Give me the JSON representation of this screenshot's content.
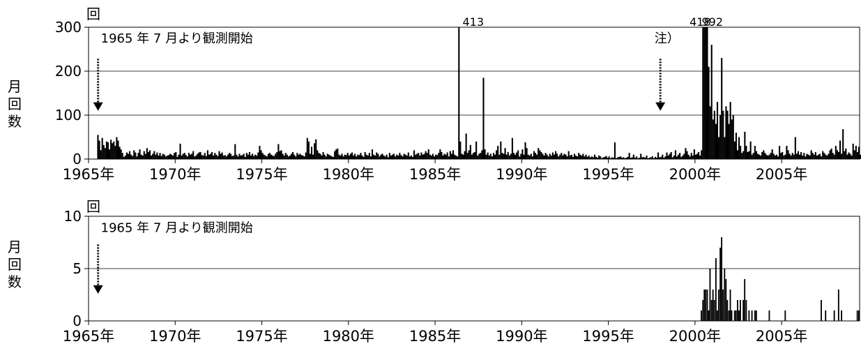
{
  "chart_data": [
    {
      "id": "upper",
      "type": "bar",
      "unit_label": "回",
      "ylabel": "月回数",
      "ylim": [
        0,
        300
      ],
      "yticks": [
        0,
        100,
        200,
        300
      ],
      "xlim": [
        1965.0,
        2009.5
      ],
      "xticks": [
        1965,
        1970,
        1975,
        1980,
        1985,
        1990,
        1995,
        2000,
        2005
      ],
      "xtick_labels": [
        "1965年",
        "1970年",
        "1975年",
        "1980年",
        "1985年",
        "1990年",
        "1995年",
        "2000年",
        "2005年"
      ],
      "grid": true,
      "annotations": [
        {
          "text": "1965 年 7 月より観測開始",
          "x": 1965.55,
          "y": 265,
          "arrow_x": 1965.55,
          "arrow_from_y": 228,
          "arrow_to_y": 110
        },
        {
          "text": "注）",
          "x": 1997.5,
          "y": 265,
          "arrow_x": 1998.0,
          "arrow_from_y": 228,
          "arrow_to_y": 110
        }
      ],
      "overflow_labels": [
        {
          "text": "413",
          "x": 1987.2
        },
        {
          "text": "418",
          "x": 2000.3
        },
        {
          "text": "992",
          "x": 2001.0
        }
      ],
      "series": [
        {
          "x_start": 1965.5,
          "step": 0.0833333,
          "bar_width": 0.085,
          "values": [
            55,
            42,
            20,
            48,
            32,
            25,
            40,
            38,
            22,
            44,
            36,
            40,
            30,
            50,
            42,
            28,
            22,
            14,
            5,
            8,
            15,
            12,
            18,
            10,
            7,
            20,
            15,
            6,
            14,
            22,
            10,
            8,
            18,
            12,
            25,
            16,
            20,
            8,
            12,
            18,
            10,
            15,
            8,
            14,
            7,
            12,
            10,
            6,
            8,
            9,
            12,
            10,
            8,
            14,
            16,
            5,
            10,
            35,
            8,
            12,
            14,
            9,
            6,
            14,
            10,
            12,
            18,
            6,
            8,
            12,
            15,
            16,
            9,
            8,
            14,
            7,
            20,
            10,
            12,
            16,
            8,
            14,
            10,
            7,
            18,
            12,
            15,
            8,
            9,
            6,
            10,
            14,
            12,
            7,
            8,
            34,
            10,
            6,
            12,
            8,
            9,
            12,
            5,
            14,
            10,
            16,
            8,
            12,
            7,
            10,
            8,
            15,
            30,
            20,
            14,
            10,
            8,
            6,
            12,
            14,
            10,
            8,
            7,
            12,
            16,
            34,
            18,
            20,
            12,
            8,
            14,
            10,
            6,
            8,
            12,
            16,
            10,
            6,
            14,
            10,
            12,
            9,
            8,
            6,
            15,
            48,
            40,
            12,
            28,
            10,
            36,
            45,
            20,
            14,
            12,
            8,
            16,
            10,
            6,
            12,
            10,
            8,
            6,
            5,
            18,
            22,
            24,
            10,
            8,
            12,
            6,
            10,
            9,
            14,
            8,
            12,
            15,
            8,
            12,
            6,
            10,
            9,
            14,
            8,
            5,
            16,
            10,
            8,
            14,
            6,
            22,
            10,
            8,
            15,
            12,
            6,
            10,
            12,
            8,
            6,
            10,
            4,
            14,
            8,
            10,
            12,
            6,
            10,
            8,
            14,
            9,
            6,
            12,
            10,
            8,
            15,
            6,
            8,
            5,
            20,
            10,
            12,
            14,
            8,
            15,
            10,
            12,
            18,
            14,
            22,
            10,
            8,
            12,
            6,
            10,
            9,
            14,
            22,
            16,
            8,
            12,
            10,
            15,
            6,
            18,
            12,
            20,
            10,
            8,
            6,
            300,
            40,
            12,
            10,
            18,
            58,
            14,
            20,
            32,
            10,
            14,
            16,
            40,
            8,
            12,
            14,
            20,
            185,
            22,
            10,
            15,
            8,
            12,
            6,
            14,
            10,
            20,
            30,
            10,
            40,
            14,
            12,
            25,
            10,
            16,
            8,
            12,
            48,
            14,
            10,
            15,
            20,
            6,
            12,
            22,
            10,
            38,
            25,
            10,
            8,
            12,
            6,
            18,
            14,
            10,
            25,
            20,
            16,
            12,
            8,
            14,
            10,
            6,
            12,
            8,
            15,
            10,
            18,
            12,
            6,
            10,
            14,
            8,
            12,
            10,
            6,
            18,
            8,
            10,
            5,
            12,
            8,
            6,
            14,
            10,
            8,
            12,
            6,
            10,
            5,
            8,
            4,
            6,
            4,
            10,
            5,
            3,
            8,
            6,
            2,
            4,
            5,
            7,
            3,
            6,
            2,
            4,
            3,
            38,
            2,
            4,
            5,
            6,
            3,
            4,
            2,
            3,
            5,
            14,
            3,
            4,
            10,
            3,
            6,
            2,
            3,
            12,
            4,
            5,
            3,
            8,
            2,
            3,
            4,
            6,
            2,
            5,
            3,
            15,
            4,
            5,
            10,
            3,
            6,
            15,
            8,
            12,
            16,
            4,
            8,
            20,
            6,
            10,
            14,
            5,
            8,
            12,
            25,
            18,
            10,
            6,
            14,
            8,
            22,
            10,
            12,
            16,
            8,
            20,
            300,
            300,
            300,
            300,
            210,
            120,
            260,
            90,
            110,
            80,
            130,
            50,
            100,
            230,
            110,
            50,
            120,
            110,
            80,
            130,
            90,
            100,
            40,
            60,
            20,
            50,
            30,
            14,
            18,
            62,
            30,
            16,
            18,
            40,
            10,
            14,
            30,
            18,
            12,
            10,
            8,
            16,
            20,
            14,
            10,
            8,
            10,
            14,
            22,
            12,
            8,
            10,
            6,
            30,
            14,
            16,
            8,
            10,
            30,
            20,
            12,
            8,
            14,
            10,
            50,
            12,
            18,
            10,
            16,
            8,
            14,
            6,
            12,
            10,
            8,
            20,
            14,
            10,
            16,
            8,
            10,
            12,
            6,
            18,
            14,
            10,
            8,
            12,
            20,
            24,
            14,
            10,
            30,
            20,
            16,
            42,
            12,
            68,
            18,
            24,
            10,
            15,
            12,
            8,
            35,
            20,
            30,
            16,
            28,
            10,
            22,
            14,
            18,
            12,
            24,
            16,
            30,
            14,
            10,
            22,
            16,
            12,
            20,
            14,
            10,
            120,
            18,
            12
          ]
        }
      ]
    },
    {
      "id": "lower",
      "type": "bar",
      "unit_label": "回",
      "ylabel": "月回数",
      "ylim": [
        0,
        10
      ],
      "yticks": [
        0,
        5,
        10
      ],
      "xlim": [
        1965.0,
        2009.5
      ],
      "xticks": [
        1965,
        1970,
        1975,
        1980,
        1985,
        1990,
        1995,
        2000,
        2005
      ],
      "xtick_labels": [
        "1965年",
        "1970年",
        "1975年",
        "1980年",
        "1985年",
        "1990年",
        "1995年",
        "2000年",
        "2005年"
      ],
      "grid": true,
      "annotations": [
        {
          "text": "1965 年 7 月より観測開始",
          "x": 1965.55,
          "y": 8.5,
          "arrow_x": 1965.55,
          "arrow_from_y": 7.3,
          "arrow_to_y": 2.6
        }
      ],
      "series": [
        {
          "points": [
            [
              2000.33,
              1
            ],
            [
              2000.42,
              2
            ],
            [
              2000.5,
              3
            ],
            [
              2000.58,
              3
            ],
            [
              2000.67,
              3
            ],
            [
              2000.75,
              1
            ],
            [
              2000.83,
              5
            ],
            [
              2000.92,
              2
            ],
            [
              2001.0,
              3
            ],
            [
              2001.08,
              2
            ],
            [
              2001.17,
              6
            ],
            [
              2001.25,
              1
            ],
            [
              2001.33,
              3
            ],
            [
              2001.42,
              7
            ],
            [
              2001.5,
              8
            ],
            [
              2001.58,
              3
            ],
            [
              2001.67,
              5
            ],
            [
              2001.75,
              4
            ],
            [
              2001.83,
              2
            ],
            [
              2001.92,
              1
            ],
            [
              2002.0,
              3
            ],
            [
              2002.08,
              1
            ],
            [
              2002.25,
              1
            ],
            [
              2002.33,
              1
            ],
            [
              2002.42,
              2
            ],
            [
              2002.5,
              1
            ],
            [
              2002.58,
              2
            ],
            [
              2002.75,
              2
            ],
            [
              2002.83,
              4
            ],
            [
              2002.92,
              2
            ],
            [
              2003.08,
              1
            ],
            [
              2003.25,
              1
            ],
            [
              2003.42,
              1
            ],
            [
              2003.5,
              1
            ],
            [
              2004.25,
              1
            ],
            [
              2005.17,
              1
            ],
            [
              2007.25,
              2
            ],
            [
              2007.5,
              1
            ],
            [
              2008.0,
              1
            ],
            [
              2008.25,
              3
            ],
            [
              2008.42,
              1
            ],
            [
              2009.33,
              1
            ],
            [
              2009.42,
              1
            ]
          ],
          "bar_width": 0.075
        }
      ]
    }
  ]
}
